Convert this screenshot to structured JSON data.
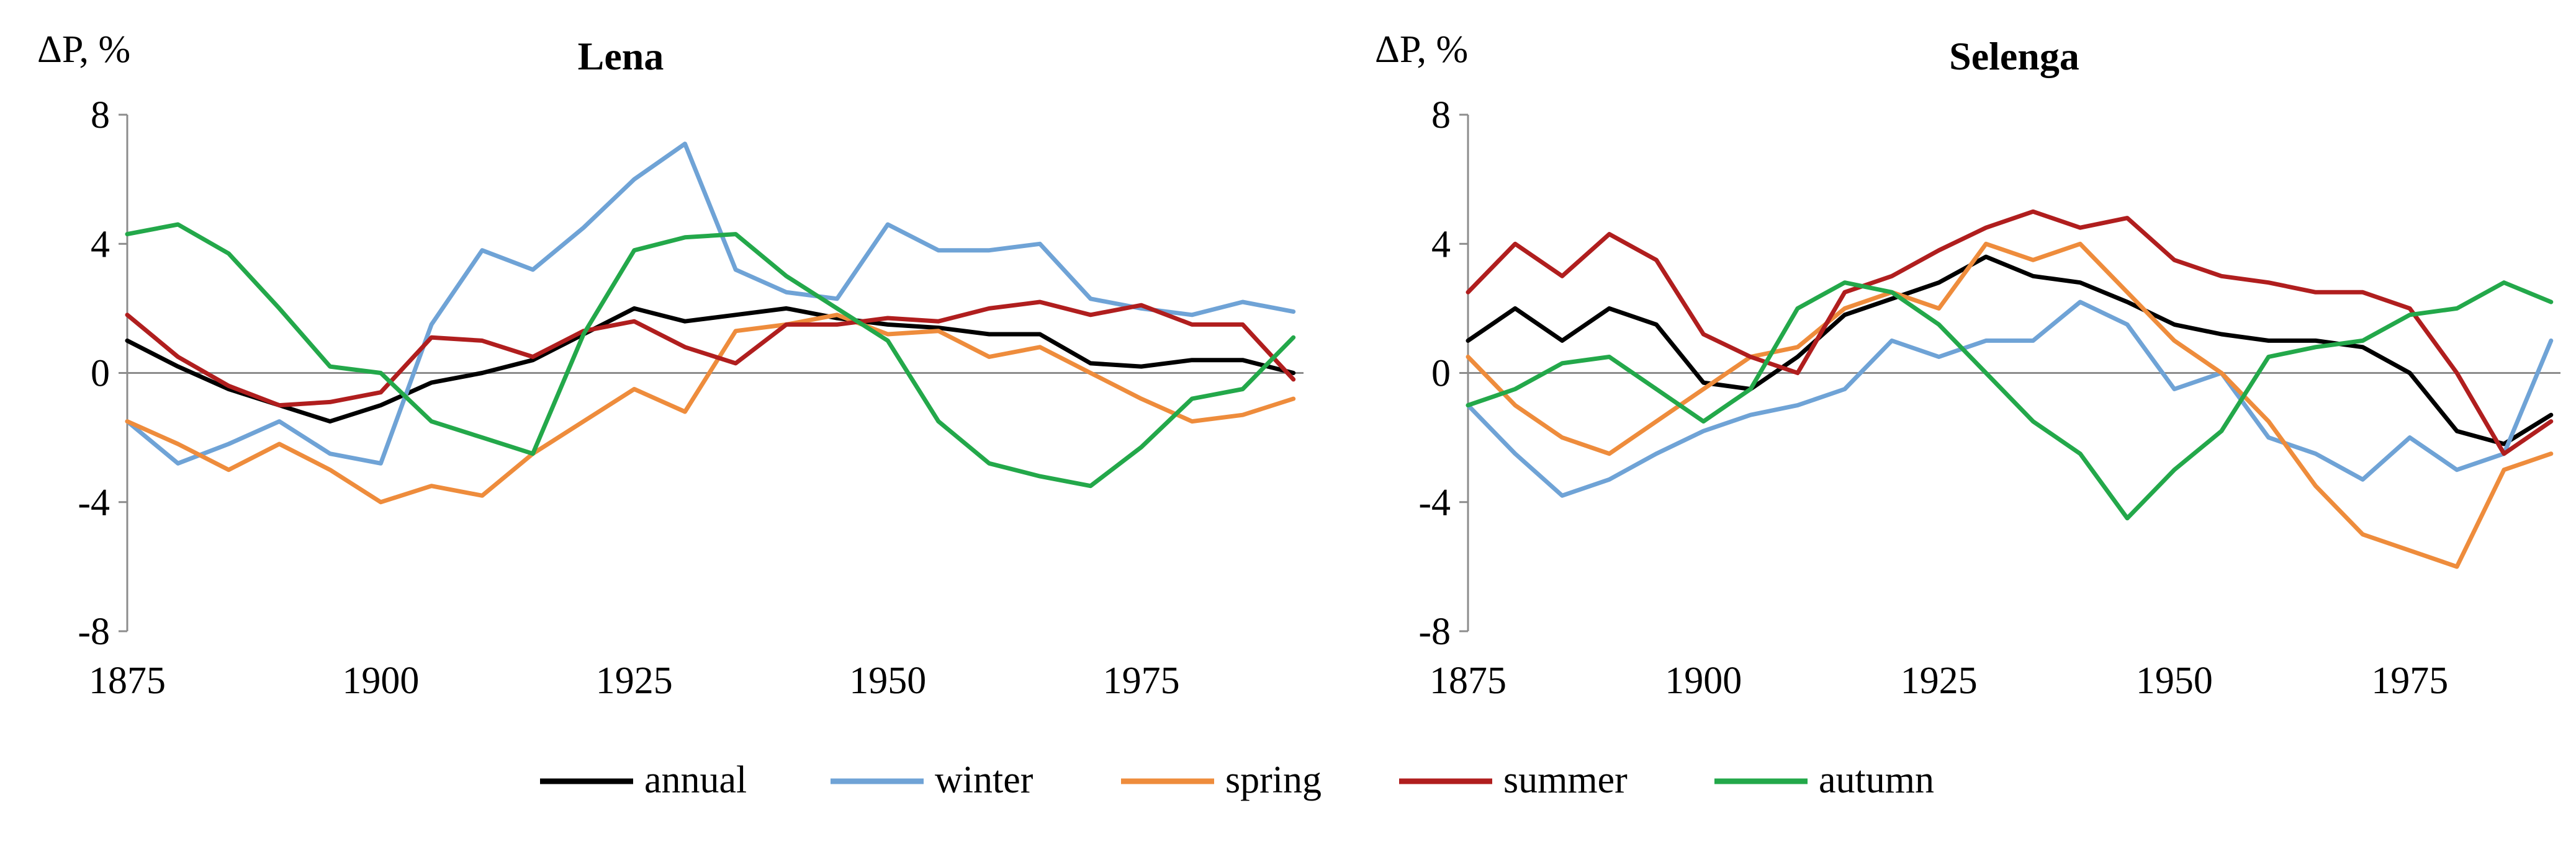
{
  "chart_data": [
    {
      "type": "line",
      "title": "Lena",
      "ylabel": "ΔP, %",
      "xlabel": "",
      "xlim": [
        1875,
        1991
      ],
      "ylim": [
        -8,
        8
      ],
      "xticks": [
        1875,
        1900,
        1925,
        1950,
        1975
      ],
      "yticks": [
        8,
        4,
        0,
        -4,
        -8
      ],
      "x": [
        1875,
        1880,
        1885,
        1890,
        1895,
        1900,
        1905,
        1910,
        1915,
        1920,
        1925,
        1930,
        1935,
        1940,
        1945,
        1950,
        1955,
        1960,
        1965,
        1970,
        1975,
        1980,
        1985,
        1990
      ],
      "series": [
        {
          "name": "annual",
          "values": [
            1.0,
            0.2,
            -0.5,
            -1.0,
            -1.5,
            -1.0,
            -0.3,
            0.0,
            0.4,
            1.2,
            2.0,
            1.6,
            1.8,
            2.0,
            1.7,
            1.5,
            1.4,
            1.2,
            1.2,
            0.3,
            0.2,
            0.4,
            0.4,
            0.0
          ]
        },
        {
          "name": "winter",
          "values": [
            -1.5,
            -2.8,
            -2.2,
            -1.5,
            -2.5,
            -2.8,
            1.5,
            3.8,
            3.2,
            4.5,
            6.0,
            7.1,
            3.2,
            2.5,
            2.3,
            4.6,
            3.8,
            3.8,
            4.0,
            2.3,
            2.0,
            1.8,
            2.2,
            1.9
          ]
        },
        {
          "name": "spring",
          "values": [
            -1.5,
            -2.2,
            -3.0,
            -2.2,
            -3.0,
            -4.0,
            -3.5,
            -3.8,
            -2.5,
            -1.5,
            -0.5,
            -1.2,
            1.3,
            1.5,
            1.8,
            1.2,
            1.3,
            0.5,
            0.8,
            0.0,
            -0.8,
            -1.5,
            -1.3,
            -0.8
          ]
        },
        {
          "name": "summer",
          "values": [
            1.8,
            0.5,
            -0.4,
            -1.0,
            -0.9,
            -0.6,
            1.1,
            1.0,
            0.5,
            1.3,
            1.6,
            0.8,
            0.3,
            1.5,
            1.5,
            1.7,
            1.6,
            2.0,
            2.2,
            1.8,
            2.1,
            1.5,
            1.5,
            -0.2
          ]
        },
        {
          "name": "autumn",
          "values": [
            4.3,
            4.6,
            3.7,
            2.0,
            0.2,
            0.0,
            -1.5,
            -2.0,
            -2.5,
            1.2,
            3.8,
            4.2,
            4.3,
            3.0,
            2.0,
            1.0,
            -1.5,
            -2.8,
            -3.2,
            -3.5,
            -2.3,
            -0.8,
            -0.5,
            1.1
          ]
        }
      ]
    },
    {
      "type": "line",
      "title": "Selenga",
      "ylabel": "ΔP, %",
      "xlabel": "",
      "xlim": [
        1875,
        1991
      ],
      "ylim": [
        -8,
        8
      ],
      "xticks": [
        1875,
        1900,
        1925,
        1950,
        1975
      ],
      "yticks": [
        8,
        4,
        0,
        -4,
        -8
      ],
      "x": [
        1875,
        1880,
        1885,
        1890,
        1895,
        1900,
        1905,
        1910,
        1915,
        1920,
        1925,
        1930,
        1935,
        1940,
        1945,
        1950,
        1955,
        1960,
        1965,
        1970,
        1975,
        1980,
        1985,
        1990
      ],
      "series": [
        {
          "name": "annual",
          "values": [
            1.0,
            2.0,
            1.0,
            2.0,
            1.5,
            -0.3,
            -0.5,
            0.5,
            1.8,
            2.3,
            2.8,
            3.6,
            3.0,
            2.8,
            2.2,
            1.5,
            1.2,
            1.0,
            1.0,
            0.8,
            0.0,
            -1.8,
            -2.2,
            -1.3
          ]
        },
        {
          "name": "winter",
          "values": [
            -1.0,
            -2.5,
            -3.8,
            -3.3,
            -2.5,
            -1.8,
            -1.3,
            -1.0,
            -0.5,
            1.0,
            0.5,
            1.0,
            1.0,
            2.2,
            1.5,
            -0.5,
            0.0,
            -2.0,
            -2.5,
            -3.3,
            -2.0,
            -3.0,
            -2.5,
            1.0
          ]
        },
        {
          "name": "spring",
          "values": [
            0.5,
            -1.0,
            -2.0,
            -2.5,
            -1.5,
            -0.5,
            0.5,
            0.8,
            2.0,
            2.5,
            2.0,
            4.0,
            3.5,
            4.0,
            2.5,
            1.0,
            0.0,
            -1.5,
            -3.5,
            -5.0,
            -5.5,
            -6.0,
            -3.0,
            -2.5
          ]
        },
        {
          "name": "summer",
          "values": [
            2.5,
            4.0,
            3.0,
            4.3,
            3.5,
            1.2,
            0.5,
            0.0,
            2.5,
            3.0,
            3.8,
            4.5,
            5.0,
            4.5,
            4.8,
            3.5,
            3.0,
            2.8,
            2.5,
            2.5,
            2.0,
            0.0,
            -2.5,
            -1.5
          ]
        },
        {
          "name": "autumn",
          "values": [
            -1.0,
            -0.5,
            0.3,
            0.5,
            -0.5,
            -1.5,
            -0.5,
            2.0,
            2.8,
            2.5,
            1.5,
            0.0,
            -1.5,
            -2.5,
            -4.5,
            -3.0,
            -1.8,
            0.5,
            0.8,
            1.0,
            1.8,
            2.0,
            2.8,
            2.2
          ]
        }
      ]
    }
  ],
  "legend": {
    "entries": [
      "annual",
      "winter",
      "spring",
      "summer",
      "autumn"
    ],
    "colors": {
      "annual": "#000000",
      "winter": "#6fa3d6",
      "spring": "#ee8c3c",
      "summer": "#b01e1e",
      "autumn": "#23a84a"
    }
  }
}
